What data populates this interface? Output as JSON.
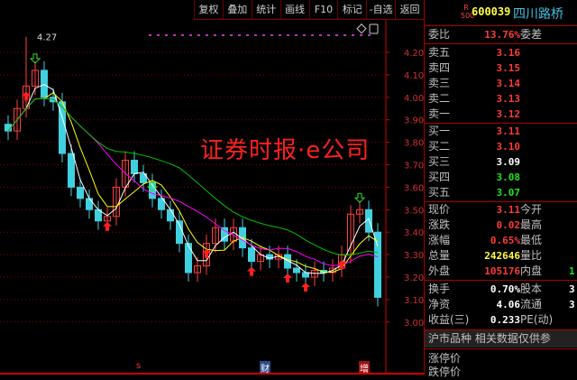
{
  "toolbar": [
    "复权",
    "叠加",
    "统计",
    "画线",
    "F10",
    "标记",
    "-自选",
    "返回"
  ],
  "stock": {
    "badge_top": "R",
    "badge_bottom": "500",
    "code": "600039",
    "name": "四川路桥"
  },
  "order_ratio": {
    "label": "委比",
    "value": "13.76%",
    "label2": "委差"
  },
  "asks": [
    {
      "label": "卖五",
      "price": "3.16"
    },
    {
      "label": "卖四",
      "price": "3.15"
    },
    {
      "label": "卖三",
      "price": "3.14"
    },
    {
      "label": "卖二",
      "price": "3.13"
    },
    {
      "label": "卖一",
      "price": "3.12"
    }
  ],
  "bids": [
    {
      "label": "买一",
      "price": "3.11",
      "color": "red"
    },
    {
      "label": "买二",
      "price": "3.10",
      "color": "red"
    },
    {
      "label": "买三",
      "price": "3.09",
      "color": "wht"
    },
    {
      "label": "买四",
      "price": "3.08",
      "color": "grn"
    },
    {
      "label": "买五",
      "price": "3.07",
      "color": "grn"
    }
  ],
  "quote": [
    {
      "label": "现价",
      "value": "3.11",
      "color": "red",
      "label2": "今开",
      "value2": ""
    },
    {
      "label": "涨跌",
      "value": "0.02",
      "color": "red",
      "label2": "最高",
      "value2": ""
    },
    {
      "label": "涨幅",
      "value": "0.65%",
      "color": "red",
      "label2": "最低",
      "value2": ""
    },
    {
      "label": "总量",
      "value": "242646",
      "color": "yel",
      "label2": "量比",
      "value2": ""
    },
    {
      "label": "外盘",
      "value": "105176",
      "color": "red",
      "label2": "内盘",
      "value2": "1",
      "color2": "grn"
    }
  ],
  "fund": [
    {
      "label": "换手",
      "value": "0.70%",
      "label2": "股本",
      "value2": "3"
    },
    {
      "label": "净资",
      "value": "4.06",
      "label2": "流通",
      "value2": "3"
    },
    {
      "label": "收益(三)",
      "value": "0.233",
      "label2": "PE(动)",
      "value2": ""
    }
  ],
  "notice": "沪市品种  相关数据仅供参",
  "limits": [
    "涨停价",
    "跌停价"
  ],
  "watermark": "证券时报·e公司",
  "markers": [
    "s",
    "财",
    "增"
  ],
  "chart_data": {
    "type": "candlestick",
    "y_ticks": [
      "4.20",
      "4.10",
      "4.00",
      "3.90",
      "3.80",
      "3.70",
      "3.60",
      "3.50",
      "3.40",
      "3.30",
      "3.20",
      "3.10",
      "3.00"
    ],
    "ylim": [
      2.95,
      4.3
    ],
    "high_label": "4.27",
    "closes": [
      3.85,
      3.95,
      4.05,
      4.12,
      4.0,
      3.98,
      3.75,
      3.6,
      3.55,
      3.5,
      3.45,
      3.47,
      3.6,
      3.72,
      3.66,
      3.62,
      3.55,
      3.5,
      3.45,
      3.35,
      3.22,
      3.25,
      3.35,
      3.42,
      3.36,
      3.42,
      3.33,
      3.27,
      3.3,
      3.28,
      3.3,
      3.24,
      3.22,
      3.2,
      3.23,
      3.22,
      3.24,
      3.3,
      3.48,
      3.5,
      3.4,
      3.11
    ],
    "up_arrows": [
      2,
      11,
      22,
      27,
      31,
      33,
      37
    ],
    "down_arrows": [
      3,
      16,
      39
    ],
    "ma_colors": [
      "#ffffff",
      "#ffff00",
      "#ff00ff",
      "#00c000"
    ]
  }
}
